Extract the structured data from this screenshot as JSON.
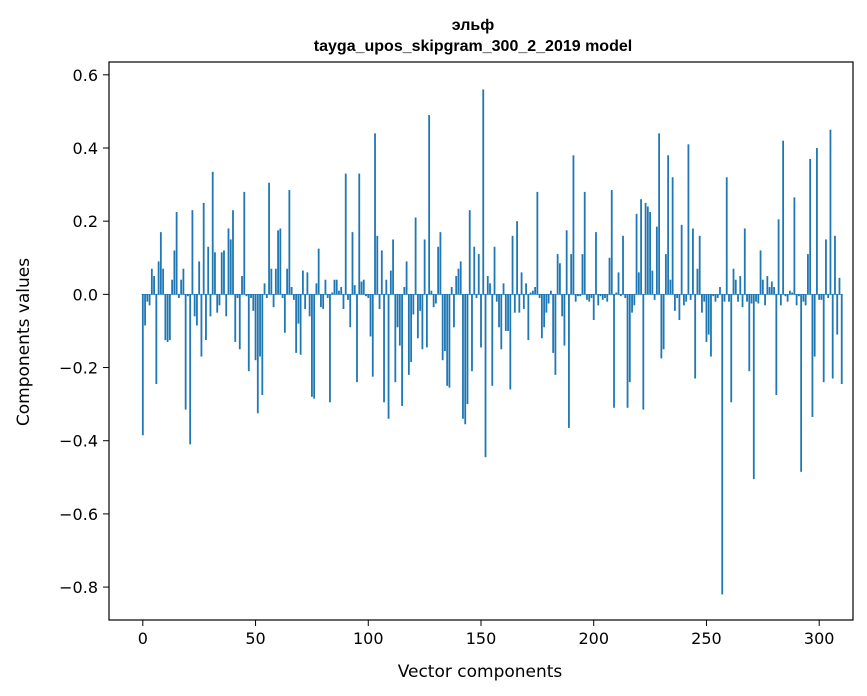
{
  "chart_data": {
    "type": "bar",
    "title_line1": "эльф",
    "title_line2": "tayga_upos_skipgram_300_2_2019 model",
    "xlabel": "Vector components",
    "ylabel": "Components values",
    "xlim": [
      -15,
      315
    ],
    "ylim": [
      -0.89,
      0.635
    ],
    "xticks": [
      0,
      50,
      100,
      150,
      200,
      250,
      300
    ],
    "xtick_labels": [
      "0",
      "50",
      "100",
      "150",
      "200",
      "250",
      "300"
    ],
    "yticks": [
      -0.8,
      -0.6,
      -0.4,
      -0.2,
      0.0,
      0.2,
      0.4,
      0.6
    ],
    "ytick_labels": [
      "−0.8",
      "−0.6",
      "−0.4",
      "−0.2",
      "0.0",
      "0.2",
      "0.4",
      "0.6"
    ],
    "bar_color": "#1f77b4",
    "values": [
      -0.385,
      -0.085,
      -0.02,
      -0.03,
      0.07,
      0.05,
      -0.245,
      0.09,
      0.17,
      0.07,
      -0.125,
      -0.13,
      -0.125,
      0.04,
      0.12,
      0.225,
      -0.01,
      0.04,
      0.07,
      -0.315,
      -0.005,
      -0.41,
      0.23,
      -0.06,
      -0.085,
      0.09,
      -0.17,
      0.25,
      -0.125,
      0.13,
      -0.06,
      0.335,
      0.115,
      -0.05,
      -0.03,
      0.115,
      0.12,
      -0.06,
      0.18,
      0.15,
      0.23,
      -0.13,
      -0.01,
      -0.15,
      0.05,
      0.28,
      -0.005,
      -0.21,
      -0.01,
      -0.045,
      -0.18,
      -0.325,
      -0.17,
      -0.275,
      0.03,
      -0.01,
      0.305,
      0.07,
      -0.035,
      0.07,
      0.175,
      0.18,
      -0.01,
      -0.105,
      0.07,
      0.285,
      0.02,
      -0.015,
      -0.16,
      -0.08,
      -0.165,
      0.065,
      -0.04,
      0.06,
      -0.06,
      -0.28,
      -0.285,
      0.03,
      0.125,
      -0.035,
      -0.04,
      0.04,
      -0.01,
      -0.295,
      0.005,
      0.04,
      0.04,
      0.01,
      0.02,
      -0.04,
      0.33,
      -0.015,
      -0.09,
      0.17,
      0.025,
      -0.24,
      0.33,
      0.035,
      0.04,
      -0.005,
      -0.01,
      -0.115,
      -0.225,
      0.44,
      0.16,
      -0.04,
      0.12,
      -0.295,
      0.04,
      -0.34,
      0.065,
      0.15,
      -0.24,
      -0.09,
      -0.14,
      -0.305,
      0.02,
      0.09,
      -0.22,
      -0.185,
      -0.055,
      0.21,
      -0.12,
      -0.045,
      -0.15,
      0.15,
      -0.145,
      0.49,
      0.01,
      -0.035,
      -0.025,
      0.13,
      0.17,
      -0.18,
      -0.155,
      -0.25,
      -0.255,
      0.02,
      -0.09,
      0.05,
      0.07,
      0.09,
      -0.34,
      -0.355,
      -0.3,
      0.23,
      -0.21,
      0.13,
      -0.01,
      0.11,
      -0.145,
      0.56,
      -0.445,
      0.05,
      0.03,
      -0.25,
      0.13,
      -0.02,
      -0.09,
      -0.15,
      0.03,
      -0.1,
      -0.1,
      -0.26,
      0.16,
      -0.05,
      0.2,
      -0.05,
      0.06,
      -0.04,
      0.03,
      -0.125,
      0.005,
      0.01,
      0.02,
      0.28,
      -0.01,
      -0.12,
      -0.09,
      -0.05,
      -0.025,
      0.01,
      -0.16,
      -0.22,
      0.11,
      0.085,
      -0.06,
      -0.14,
      0.175,
      -0.365,
      0.11,
      0.38,
      -0.02,
      -0.005,
      -0.005,
      0.11,
      0.28,
      -0.015,
      -0.02,
      -0.01,
      -0.07,
      0.17,
      -0.03,
      -0.005,
      -0.015,
      -0.01,
      -0.02,
      0.1,
      0.285,
      -0.31,
      0.005,
      0.06,
      -0.005,
      0.16,
      -0.01,
      -0.31,
      -0.24,
      -0.05,
      -0.03,
      0.22,
      0.06,
      0.26,
      -0.315,
      0.25,
      0.24,
      0.225,
      0.065,
      -0.015,
      0.185,
      0.44,
      -0.175,
      -0.15,
      0.11,
      0.38,
      0.04,
      0.32,
      -0.045,
      -0.01,
      -0.07,
      0.19,
      -0.03,
      -0.02,
      0.41,
      -0.015,
      0.18,
      -0.23,
      0.07,
      0.16,
      -0.05,
      -0.02,
      -0.13,
      -0.11,
      -0.17,
      -0.005,
      -0.02,
      -0.01,
      0.02,
      -0.82,
      -0.02,
      0.32,
      -0.02,
      -0.295,
      0.07,
      0.04,
      -0.02,
      0.05,
      -0.035,
      0.18,
      -0.02,
      -0.21,
      -0.025,
      -0.505,
      -0.02,
      -0.025,
      0.12,
      0.04,
      -0.03,
      0.05,
      0.02,
      0.035,
      0.02,
      -0.275,
      0.205,
      -0.03,
      0.42,
      -0.005,
      -0.02,
      0.01,
      0.005,
      0.265,
      -0.03,
      -0.005,
      -0.485,
      -0.02,
      -0.03,
      0.11,
      0.37,
      -0.335,
      -0.17,
      0.4,
      -0.015,
      -0.015,
      -0.24,
      0.15,
      -0.01,
      0.45,
      -0.23,
      0.16,
      -0.11,
      0.045,
      -0.245
    ]
  }
}
